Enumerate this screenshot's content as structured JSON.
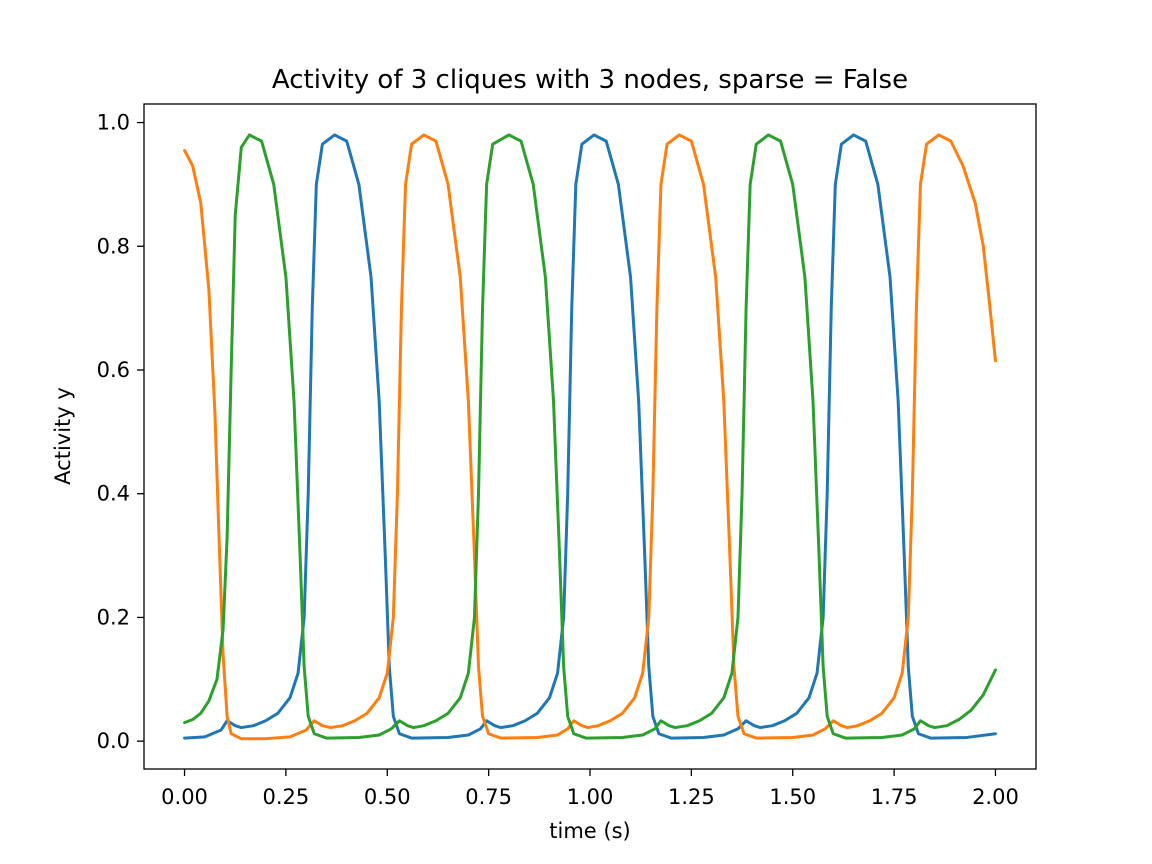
{
  "chart_data": {
    "type": "line",
    "title": "Activity of 3 cliques with 3 nodes, sparse = False",
    "xlabel": "time (s)",
    "ylabel": "Activity y",
    "xlim": [
      -0.1,
      2.1
    ],
    "ylim": [
      -0.045,
      1.03
    ],
    "grid": false,
    "legend": "none",
    "xticks": [
      0.0,
      0.25,
      0.5,
      0.75,
      1.0,
      1.25,
      1.5,
      1.75,
      2.0
    ],
    "xtick_labels": [
      "0.00",
      "0.25",
      "0.50",
      "0.75",
      "1.00",
      "1.25",
      "1.50",
      "1.75",
      "2.00"
    ],
    "yticks": [
      0.0,
      0.2,
      0.4,
      0.6,
      0.8,
      1.0
    ],
    "ytick_labels": [
      "0.0",
      "0.2",
      "0.4",
      "0.6",
      "0.8",
      "1.0"
    ],
    "series": [
      {
        "color": "#1f77b4",
        "points": [
          [
            0.0,
            0.005
          ],
          [
            0.05,
            0.007
          ],
          [
            0.09,
            0.018
          ],
          [
            0.105,
            0.033
          ],
          [
            0.125,
            0.025
          ],
          [
            0.14,
            0.022
          ],
          [
            0.17,
            0.025
          ],
          [
            0.2,
            0.033
          ],
          [
            0.23,
            0.045
          ],
          [
            0.26,
            0.07
          ],
          [
            0.28,
            0.11
          ],
          [
            0.295,
            0.2
          ],
          [
            0.305,
            0.4
          ],
          [
            0.315,
            0.7
          ],
          [
            0.325,
            0.9
          ],
          [
            0.34,
            0.965
          ],
          [
            0.37,
            0.98
          ],
          [
            0.4,
            0.97
          ],
          [
            0.43,
            0.9
          ],
          [
            0.46,
            0.75
          ],
          [
            0.48,
            0.55
          ],
          [
            0.495,
            0.3
          ],
          [
            0.505,
            0.12
          ],
          [
            0.515,
            0.04
          ],
          [
            0.53,
            0.012
          ],
          [
            0.56,
            0.005
          ],
          [
            0.65,
            0.006
          ],
          [
            0.7,
            0.01
          ],
          [
            0.73,
            0.02
          ],
          [
            0.745,
            0.033
          ],
          [
            0.765,
            0.025
          ],
          [
            0.78,
            0.022
          ],
          [
            0.81,
            0.025
          ],
          [
            0.84,
            0.033
          ],
          [
            0.87,
            0.045
          ],
          [
            0.9,
            0.07
          ],
          [
            0.92,
            0.11
          ],
          [
            0.935,
            0.2
          ],
          [
            0.945,
            0.4
          ],
          [
            0.955,
            0.7
          ],
          [
            0.965,
            0.9
          ],
          [
            0.98,
            0.965
          ],
          [
            1.01,
            0.98
          ],
          [
            1.04,
            0.97
          ],
          [
            1.07,
            0.9
          ],
          [
            1.1,
            0.75
          ],
          [
            1.12,
            0.55
          ],
          [
            1.135,
            0.3
          ],
          [
            1.145,
            0.12
          ],
          [
            1.155,
            0.04
          ],
          [
            1.17,
            0.012
          ],
          [
            1.2,
            0.005
          ],
          [
            1.28,
            0.006
          ],
          [
            1.33,
            0.01
          ],
          [
            1.365,
            0.02
          ],
          [
            1.385,
            0.033
          ],
          [
            1.405,
            0.025
          ],
          [
            1.42,
            0.022
          ],
          [
            1.45,
            0.025
          ],
          [
            1.48,
            0.033
          ],
          [
            1.51,
            0.045
          ],
          [
            1.54,
            0.07
          ],
          [
            1.56,
            0.11
          ],
          [
            1.575,
            0.2
          ],
          [
            1.585,
            0.4
          ],
          [
            1.595,
            0.7
          ],
          [
            1.605,
            0.9
          ],
          [
            1.62,
            0.965
          ],
          [
            1.65,
            0.98
          ],
          [
            1.68,
            0.97
          ],
          [
            1.71,
            0.9
          ],
          [
            1.74,
            0.75
          ],
          [
            1.76,
            0.55
          ],
          [
            1.775,
            0.3
          ],
          [
            1.785,
            0.12
          ],
          [
            1.795,
            0.04
          ],
          [
            1.81,
            0.012
          ],
          [
            1.84,
            0.005
          ],
          [
            1.93,
            0.006
          ],
          [
            2.0,
            0.012
          ]
        ]
      },
      {
        "color": "#ff7f0e",
        "points": [
          [
            0.0,
            0.955
          ],
          [
            0.02,
            0.93
          ],
          [
            0.04,
            0.87
          ],
          [
            0.06,
            0.73
          ],
          [
            0.075,
            0.53
          ],
          [
            0.085,
            0.33
          ],
          [
            0.095,
            0.14
          ],
          [
            0.105,
            0.04
          ],
          [
            0.115,
            0.012
          ],
          [
            0.14,
            0.004
          ],
          [
            0.2,
            0.004
          ],
          [
            0.26,
            0.007
          ],
          [
            0.3,
            0.018
          ],
          [
            0.32,
            0.033
          ],
          [
            0.34,
            0.025
          ],
          [
            0.36,
            0.022
          ],
          [
            0.39,
            0.025
          ],
          [
            0.42,
            0.033
          ],
          [
            0.45,
            0.045
          ],
          [
            0.48,
            0.07
          ],
          [
            0.5,
            0.11
          ],
          [
            0.515,
            0.2
          ],
          [
            0.525,
            0.4
          ],
          [
            0.535,
            0.7
          ],
          [
            0.545,
            0.9
          ],
          [
            0.56,
            0.965
          ],
          [
            0.59,
            0.98
          ],
          [
            0.62,
            0.97
          ],
          [
            0.65,
            0.9
          ],
          [
            0.68,
            0.75
          ],
          [
            0.7,
            0.55
          ],
          [
            0.715,
            0.3
          ],
          [
            0.725,
            0.12
          ],
          [
            0.735,
            0.04
          ],
          [
            0.75,
            0.012
          ],
          [
            0.78,
            0.005
          ],
          [
            0.87,
            0.006
          ],
          [
            0.92,
            0.01
          ],
          [
            0.945,
            0.02
          ],
          [
            0.96,
            0.033
          ],
          [
            0.98,
            0.025
          ],
          [
            0.995,
            0.022
          ],
          [
            1.02,
            0.025
          ],
          [
            1.05,
            0.033
          ],
          [
            1.08,
            0.045
          ],
          [
            1.11,
            0.07
          ],
          [
            1.13,
            0.11
          ],
          [
            1.145,
            0.2
          ],
          [
            1.155,
            0.4
          ],
          [
            1.165,
            0.7
          ],
          [
            1.175,
            0.9
          ],
          [
            1.19,
            0.965
          ],
          [
            1.22,
            0.98
          ],
          [
            1.25,
            0.97
          ],
          [
            1.28,
            0.9
          ],
          [
            1.31,
            0.75
          ],
          [
            1.33,
            0.55
          ],
          [
            1.345,
            0.3
          ],
          [
            1.355,
            0.12
          ],
          [
            1.365,
            0.04
          ],
          [
            1.38,
            0.012
          ],
          [
            1.41,
            0.005
          ],
          [
            1.5,
            0.006
          ],
          [
            1.55,
            0.01
          ],
          [
            1.58,
            0.02
          ],
          [
            1.6,
            0.033
          ],
          [
            1.62,
            0.025
          ],
          [
            1.635,
            0.022
          ],
          [
            1.66,
            0.025
          ],
          [
            1.69,
            0.033
          ],
          [
            1.72,
            0.045
          ],
          [
            1.75,
            0.07
          ],
          [
            1.77,
            0.11
          ],
          [
            1.785,
            0.2
          ],
          [
            1.795,
            0.4
          ],
          [
            1.805,
            0.7
          ],
          [
            1.815,
            0.9
          ],
          [
            1.83,
            0.965
          ],
          [
            1.86,
            0.98
          ],
          [
            1.89,
            0.97
          ],
          [
            1.92,
            0.93
          ],
          [
            1.95,
            0.87
          ],
          [
            1.97,
            0.8
          ],
          [
            1.985,
            0.71
          ],
          [
            2.0,
            0.615
          ]
        ]
      },
      {
        "color": "#2ca02c",
        "points": [
          [
            0.0,
            0.03
          ],
          [
            0.02,
            0.035
          ],
          [
            0.04,
            0.045
          ],
          [
            0.06,
            0.065
          ],
          [
            0.08,
            0.1
          ],
          [
            0.095,
            0.18
          ],
          [
            0.105,
            0.33
          ],
          [
            0.115,
            0.6
          ],
          [
            0.125,
            0.85
          ],
          [
            0.14,
            0.96
          ],
          [
            0.16,
            0.98
          ],
          [
            0.19,
            0.97
          ],
          [
            0.22,
            0.9
          ],
          [
            0.25,
            0.75
          ],
          [
            0.27,
            0.55
          ],
          [
            0.285,
            0.3
          ],
          [
            0.295,
            0.12
          ],
          [
            0.305,
            0.04
          ],
          [
            0.32,
            0.012
          ],
          [
            0.35,
            0.005
          ],
          [
            0.43,
            0.006
          ],
          [
            0.48,
            0.01
          ],
          [
            0.51,
            0.02
          ],
          [
            0.53,
            0.033
          ],
          [
            0.55,
            0.025
          ],
          [
            0.565,
            0.022
          ],
          [
            0.59,
            0.025
          ],
          [
            0.62,
            0.033
          ],
          [
            0.65,
            0.045
          ],
          [
            0.68,
            0.07
          ],
          [
            0.7,
            0.11
          ],
          [
            0.715,
            0.2
          ],
          [
            0.725,
            0.4
          ],
          [
            0.735,
            0.7
          ],
          [
            0.745,
            0.9
          ],
          [
            0.76,
            0.965
          ],
          [
            0.8,
            0.98
          ],
          [
            0.83,
            0.97
          ],
          [
            0.86,
            0.9
          ],
          [
            0.89,
            0.75
          ],
          [
            0.91,
            0.55
          ],
          [
            0.925,
            0.3
          ],
          [
            0.935,
            0.12
          ],
          [
            0.945,
            0.04
          ],
          [
            0.96,
            0.012
          ],
          [
            0.99,
            0.005
          ],
          [
            1.08,
            0.006
          ],
          [
            1.13,
            0.01
          ],
          [
            1.16,
            0.02
          ],
          [
            1.175,
            0.033
          ],
          [
            1.195,
            0.025
          ],
          [
            1.21,
            0.022
          ],
          [
            1.24,
            0.025
          ],
          [
            1.27,
            0.033
          ],
          [
            1.3,
            0.045
          ],
          [
            1.33,
            0.07
          ],
          [
            1.35,
            0.11
          ],
          [
            1.365,
            0.2
          ],
          [
            1.375,
            0.4
          ],
          [
            1.385,
            0.7
          ],
          [
            1.395,
            0.9
          ],
          [
            1.41,
            0.965
          ],
          [
            1.44,
            0.98
          ],
          [
            1.47,
            0.97
          ],
          [
            1.5,
            0.9
          ],
          [
            1.53,
            0.75
          ],
          [
            1.55,
            0.55
          ],
          [
            1.565,
            0.3
          ],
          [
            1.575,
            0.12
          ],
          [
            1.585,
            0.04
          ],
          [
            1.6,
            0.012
          ],
          [
            1.63,
            0.005
          ],
          [
            1.72,
            0.006
          ],
          [
            1.77,
            0.01
          ],
          [
            1.8,
            0.02
          ],
          [
            1.815,
            0.033
          ],
          [
            1.835,
            0.025
          ],
          [
            1.85,
            0.022
          ],
          [
            1.88,
            0.025
          ],
          [
            1.91,
            0.035
          ],
          [
            1.94,
            0.05
          ],
          [
            1.97,
            0.075
          ],
          [
            2.0,
            0.115
          ]
        ]
      }
    ]
  }
}
